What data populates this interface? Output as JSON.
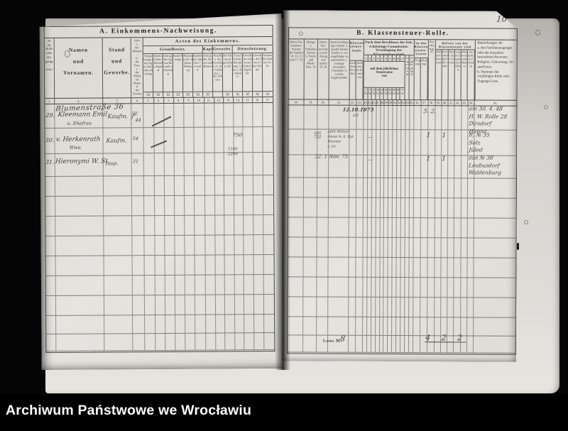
{
  "watermark": "Archiwum Państwowe we Wrocławiu",
  "left": {
    "title": "A. Einkommens-Nachweisung.",
    "col1": "№\nder\nRolle\noder\nZu-\ngangs-\nListe.",
    "col2": "Namen\nund\nVornamen.",
    "col3": "Stand\nund\nGewerbe.",
    "col4": "Alter\na.\ndes Mannes,\nb.\nder Frau,\nc.\nder Söhne\nim Hause,\nd.\nder Töchter\nim Hause.",
    "arten": "Arten des Einkommens.",
    "groups": {
      "grundbesitz": "Grundbesitz.",
      "kapital": "Kapital.",
      "gewerbe": "Gewerbe.",
      "dienstleistung": "Dienstleistung."
    },
    "subcols": [
      "Verpachtung oder eigne Bewirth-schaftung",
      "Wirth-schafts-Betriebs-Kapital",
      "Ertrag der eignen Bewirth-schaftung",
      "Pacht-Erträge",
      "Nutzung der eigenen Wohnung",
      "Summe der Spalten 7, 8 und 9.",
      "Ertrag der Zinsen und Renten",
      "Anzahl a. der Gesellen, b. der Gehülfen, c. der Arbeiter",
      "Der Ertrag ist geschätzt auf",
      "Fester Gehalt, Besoldung, Lohn a. des Mannes",
      "Erwerb aus zeitweiser Arbeit, Tagelohn",
      "Erwerb a. der Frau, b. der Kinder",
      "Summe der Spalten 14–16."
    ],
    "marks": [
      "ℳ",
      "ℳ",
      "ℳ",
      "ℳ",
      "ℳ",
      "ℳ",
      "ℳ",
      "",
      "ℳ",
      "ℳ",
      "ℳ",
      "ℳ",
      "ℳ"
    ],
    "col_numbers": [
      "1.",
      "2.",
      "3.",
      "4.",
      "5.",
      "6.",
      "7.",
      "8.",
      "9.",
      "10.",
      "11.",
      "12.",
      "13.",
      "14.",
      "15.",
      "16.",
      "17."
    ]
  },
  "right": {
    "title": "B. Klassensteuer-Rolle.",
    "col18": "Jahres-Ein-kommen: Summe der Spalten 10, 11, 13 und 17. ℳ",
    "col19": "Abzüge: a. Schulden-Zinsen, b. Pacht- und Mieth-Zins. ℳ",
    "col20": "Jahres-Ein-kommen nach Abzug von Spalte 19. ℳ",
    "col21": "Berücksichtigungs-Gründe: a. Anzahl kleiner Kinder, b. ob Angehörige zu unterhalten, c. sonstige besondere Umstände, d. welche Unglücksfälle.",
    "stufe_group": "Klassen-\nsteuer-\nStufe",
    "stufe_subs": [
      "nach dem Vor-jahre",
      "nach neuem Er-messen"
    ],
    "comm_group": "Nach dem Beschlusse der Ein-schätzungs-Commission:\nVeranlagung der Klassensteuer-Stufe",
    "stufe_numbers": [
      "3",
      "4",
      "5",
      "6",
      "7",
      "8",
      "9",
      "10",
      "11",
      "12"
    ],
    "satz_band": "mit dem jährlichen Steuersatze\nvon",
    "rates": [
      "3\nℳ",
      "6\nℳ",
      "12\nℳ",
      "18\nℳ",
      "24\nℳ",
      "30\nℳ",
      "36\nℳ",
      "48\nℳ",
      "60\nℳ",
      "72\nℳ"
    ],
    "comm_extra": [
      "Zusatz-Steuer ℳ",
      "Ermäßi-gung ℳ"
    ],
    "listen_group": "In den\nKlassen-\nsteuer-\nListen",
    "listen_subs": [
      "Zu-gang",
      "Ab-gang"
    ],
    "col38": "Rest-Betrag ℳ",
    "befreit_group": "Befreit von der Klassensteuer sind",
    "befreit_subs": [
      "Militair-Personen",
      "Personen über 60 Jahre",
      "Arme und Sieche",
      "wegen Unglücks-fällen",
      "Wittwen und Waisen",
      "aus andern Gründen"
    ],
    "col45": "Bemerkungen als:\na. des Familienzuganges oder der einzelnen besonderen Personen, Religion, Geburtstag, Ort und Kreis.\nb. Nummer der vorjährigen Rolle oder Zugangs-Liste.",
    "col_numbers": [
      "18.",
      "19.",
      "20.",
      "21.",
      "22.",
      "23.",
      "24.",
      "25.",
      "26.",
      "27.",
      "28.",
      "29.",
      "30.",
      "31.",
      "32.",
      "33.",
      "34.",
      "35.",
      "36.",
      "37.",
      "38.",
      "39.",
      "40.",
      "41.",
      "42.",
      "43.",
      "44.",
      "45."
    ],
    "latus_label": "Latus ℳ"
  },
  "hw": {
    "page_no": "10",
    "street": "Blumenstraße 36",
    "rows": [
      {
        "no": "29.",
        "name": "Kleemann Emil",
        "name2": "u. Ehefrau",
        "stand": "Kaufm.",
        "alter_a": "52",
        "alter_b": "44",
        "r18": "12.10.1873",
        "r18b": "222",
        "r36": "5. 2.",
        "bem": [
          "am 30. 4. 48",
          "H. W. Rolle 28",
          "Dirsdorf",
          "Hanna"
        ]
      },
      {
        "no": "30.",
        "name": "v. Herkenrath",
        "name2": "Wwe.",
        "stand": "Kaufm.",
        "alter_a": "54",
        "l16": "750",
        "l15a": "1100",
        "l15b": "2200",
        "r18": "aus\n732",
        "r21": [
          "zahlt Militair-",
          "steuer b. 6. Rgt.",
          "Brenner",
          "z. Gr."
        ],
        "r24": "—",
        "r37": "1",
        "r39": "1",
        "bem": [
          "R. № 35",
          "Solz",
          "Jüled"
        ]
      },
      {
        "no": "31.",
        "name": "Hieronymi W. St.",
        "stand": "Insp.",
        "alter_a": "31",
        "r18": "32.   1 Nov. 75",
        "r24": "—",
        "r37": "1",
        "r39": "1",
        "bem": [
          "aus № 38",
          "Leubusdorf",
          "Waldenburg"
        ]
      }
    ],
    "latus_value": "8",
    "totals": "4 2 2"
  }
}
